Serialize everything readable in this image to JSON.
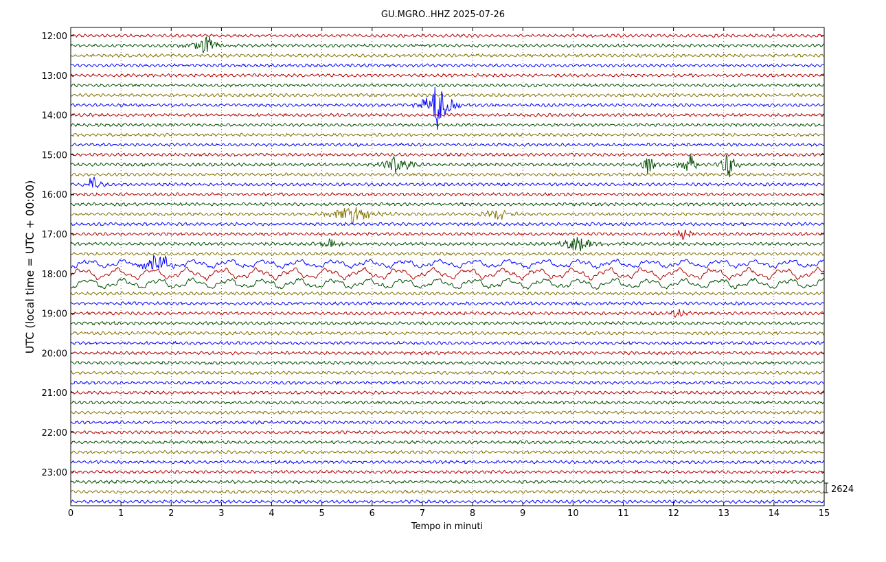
{
  "chart_data": {
    "type": "line",
    "title": "GU.MGRO..HHZ 2025-07-26",
    "xlabel": "Tempo in minuti",
    "ylabel": "UTC (local time = UTC + 00:00)",
    "xlim": [
      0,
      15
    ],
    "x_ticks": [
      "0",
      "1",
      "2",
      "3",
      "4",
      "5",
      "6",
      "7",
      "8",
      "9",
      "10",
      "11",
      "12",
      "13",
      "14",
      "15"
    ],
    "y_ticks": [
      "12:00",
      "13:00",
      "14:00",
      "15:00",
      "16:00",
      "17:00",
      "18:00",
      "19:00",
      "20:00",
      "21:00",
      "22:00",
      "23:00"
    ],
    "trace_interval_minutes": 15,
    "trace_count": 48,
    "first_trace_start": "12:00",
    "trace_colors": [
      "#b30000",
      "#004d00",
      "#807000",
      "#0000ff"
    ],
    "grid": true,
    "scale_label": "2624",
    "events": [
      {
        "trace_start": "12:15",
        "minute": 2.7,
        "amplitude": 1.4,
        "duration": 0.6
      },
      {
        "trace_start": "13:45",
        "minute": 7.3,
        "amplitude": 4.0,
        "duration": 0.5
      },
      {
        "trace_start": "15:15",
        "minute": 6.5,
        "amplitude": 1.3,
        "duration": 0.6
      },
      {
        "trace_start": "15:15",
        "minute": 11.5,
        "amplitude": 1.6,
        "duration": 0.3
      },
      {
        "trace_start": "15:15",
        "minute": 12.3,
        "amplitude": 2.0,
        "duration": 0.3
      },
      {
        "trace_start": "15:15",
        "minute": 13.1,
        "amplitude": 2.0,
        "duration": 0.3
      },
      {
        "trace_start": "15:45",
        "minute": 0.45,
        "amplitude": 1.3,
        "duration": 0.3
      },
      {
        "trace_start": "16:30",
        "minute": 5.6,
        "amplitude": 1.3,
        "duration": 0.9
      },
      {
        "trace_start": "16:30",
        "minute": 8.5,
        "amplitude": 1.0,
        "duration": 0.5
      },
      {
        "trace_start": "17:00",
        "minute": 12.2,
        "amplitude": 1.0,
        "duration": 0.3
      },
      {
        "trace_start": "17:15",
        "minute": 5.2,
        "amplitude": 0.8,
        "duration": 0.4
      },
      {
        "trace_start": "17:15",
        "minute": 10.1,
        "amplitude": 1.3,
        "duration": 0.6
      },
      {
        "trace_start": "17:45",
        "minute": 1.7,
        "amplitude": 1.5,
        "duration": 0.6
      },
      {
        "trace_start": "19:00",
        "minute": 12.1,
        "amplitude": 0.6,
        "duration": 0.4
      }
    ],
    "long_period_traces": [
      {
        "trace_start": "17:45",
        "amplitude": 0.8
      },
      {
        "trace_start": "18:00",
        "amplitude": 1.1
      },
      {
        "trace_start": "18:15",
        "amplitude": 1.0
      }
    ]
  }
}
